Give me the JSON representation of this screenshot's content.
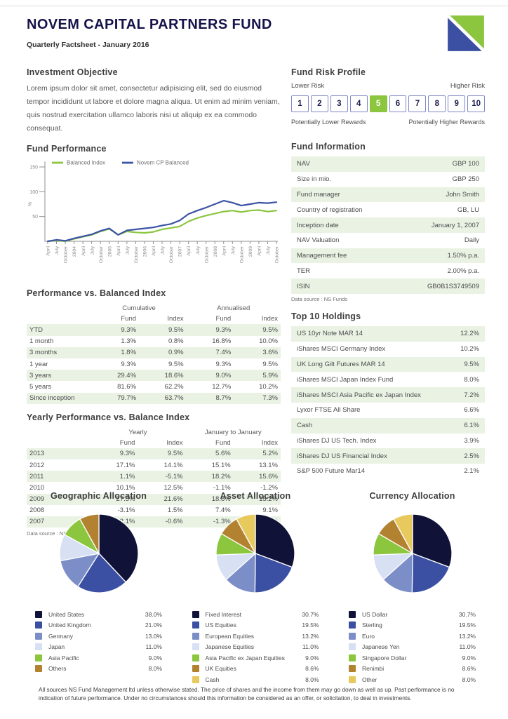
{
  "header": {
    "title": "NOVEM CAPITAL PARTNERS FUND",
    "subtitle": "Quarterly Factsheet - January 2016"
  },
  "colors": {
    "navy": "#101238",
    "blue": "#3b50a3",
    "steel": "#7c8ec7",
    "light_blue": "#d8e0f4",
    "green": "#8cc63f",
    "brown": "#b28231",
    "gold": "#e8c95e",
    "stripe_green": "#e9f2e3",
    "title_navy": "#17134a"
  },
  "objective": {
    "title": "Investment Objective",
    "text": "Lorem ipsum dolor sit amet, consectetur adipisicing elit, sed do eiusmod tempor incididunt ut labore et dolore magna aliqua. Ut enim ad minim veniam, quis nostrud exercitation ullamco laboris nisi ut aliquip ex ea commodo consequat."
  },
  "risk": {
    "title": "Fund Risk Profile",
    "lower": "Lower Risk",
    "higher": "Higher Risk",
    "boxes": [
      "1",
      "2",
      "3",
      "4",
      "5",
      "6",
      "7",
      "8",
      "9",
      "10"
    ],
    "selected_index": 4,
    "lower_rewards": "Potentially Lower Rewards",
    "higher_rewards": "Potentially Higher Rewards"
  },
  "chart_data": [
    {
      "type": "line",
      "title": "Fund Performance",
      "ylabel": "%",
      "ylim": [
        0,
        150
      ],
      "yticks": [
        50,
        100,
        150
      ],
      "legend_position": "top",
      "x": [
        "April",
        "July",
        "October",
        "2004",
        "April",
        "July",
        "October",
        "2005",
        "April",
        "July",
        "October",
        "2006",
        "April",
        "July",
        "October",
        "2007",
        "April",
        "July",
        "October",
        "2008",
        "April",
        "July",
        "October",
        "2009",
        "April",
        "July",
        "October"
      ],
      "series": [
        {
          "name": "Balanced Index",
          "color": "#8cc63f",
          "values": [
            0,
            2,
            0,
            5,
            9,
            13,
            20,
            25,
            13,
            20,
            18,
            17,
            19,
            24,
            27,
            30,
            40,
            47,
            52,
            56,
            60,
            62,
            59,
            62,
            63,
            60,
            62
          ]
        },
        {
          "name": "Novem CP Balanced",
          "color": "#3b53a5",
          "values": [
            0,
            3,
            1,
            6,
            10,
            14,
            21,
            26,
            13,
            22,
            24,
            26,
            28,
            32,
            35,
            42,
            55,
            62,
            68,
            75,
            82,
            78,
            72,
            75,
            78,
            77,
            79
          ]
        }
      ]
    },
    {
      "type": "pie",
      "title": "Geographic Allocation",
      "labels": [
        "United States",
        "United Kingdom",
        "Germany",
        "Japan",
        "Asia Pacific",
        "Others"
      ],
      "values": [
        38.0,
        21.0,
        13.0,
        11.0,
        9.0,
        8.0
      ],
      "value_labels": [
        "38.0%",
        "21.0%",
        "13.0%",
        "11.0%",
        "9.0%",
        "8.0%"
      ],
      "colors": [
        "#101238",
        "#3b50a3",
        "#7c8ec7",
        "#d8e0f4",
        "#8cc63f",
        "#b28231"
      ]
    },
    {
      "type": "pie",
      "title": "Asset Allocation",
      "labels": [
        "Fixed Interest",
        "US Equities",
        "European Equities",
        "Japanese Equities",
        "Asia Pacific ex Japan Equities",
        "UK Equities",
        "Cash"
      ],
      "values": [
        30.7,
        19.5,
        13.2,
        11.0,
        9.0,
        8.6,
        8.0
      ],
      "value_labels": [
        "30.7%",
        "19.5%",
        "13.2%",
        "11.0%",
        "9.0%",
        "8.6%",
        "8.0%"
      ],
      "colors": [
        "#101238",
        "#3b50a3",
        "#7c8ec7",
        "#d8e0f4",
        "#8cc63f",
        "#b28231",
        "#e8c95e"
      ]
    },
    {
      "type": "pie",
      "title": "Currency Allocation",
      "labels": [
        "US Dollar",
        "Sterling",
        "Euro",
        "Japanese Yen",
        "Singapore Dollar",
        "Renimbi",
        "Other"
      ],
      "values": [
        30.7,
        19.5,
        13.2,
        11.0,
        9.0,
        8.6,
        8.0
      ],
      "value_labels": [
        "30.7%",
        "19.5%",
        "13.2%",
        "11.0%",
        "9.0%",
        "8.6%",
        "8.0%"
      ],
      "colors": [
        "#101238",
        "#3b50a3",
        "#7c8ec7",
        "#d8e0f4",
        "#8cc63f",
        "#b28231",
        "#e8c95e"
      ]
    }
  ],
  "perf_table": {
    "title": "Performance vs. Balanced Index",
    "groups": [
      "Cumulative",
      "Annualised"
    ],
    "columns": [
      "Fund",
      "Index",
      "Fund",
      "Index"
    ],
    "rows": [
      {
        "label": "YTD",
        "values": [
          "9.3%",
          "9.5%",
          "9.3%",
          "9.5%"
        ]
      },
      {
        "label": "1 month",
        "values": [
          "1.3%",
          "0.8%",
          "16.8%",
          "10.0%"
        ]
      },
      {
        "label": "3 months",
        "values": [
          "1.8%",
          "0.9%",
          "7.4%",
          "3.6%"
        ]
      },
      {
        "label": "1 year",
        "values": [
          "9.3%",
          "9.5%",
          "9.3%",
          "9.5%"
        ]
      },
      {
        "label": "3 years",
        "values": [
          "29.4%",
          "18.6%",
          "9.0%",
          "5.9%"
        ]
      },
      {
        "label": "5 years",
        "values": [
          "81.6%",
          "62.2%",
          "12.7%",
          "10.2%"
        ]
      },
      {
        "label": "Since inception",
        "values": [
          "79.7%",
          "63.7%",
          "8.7%",
          "7.3%"
        ]
      }
    ]
  },
  "yearly_table": {
    "title": "Yearly Performance vs. Balance Index",
    "groups": [
      "Yearly",
      "January to January"
    ],
    "columns": [
      "Fund",
      "Index",
      "Fund",
      "Index"
    ],
    "rows": [
      {
        "label": "2013",
        "values": [
          "9.3%",
          "9.5%",
          "5.6%",
          "5.2%"
        ]
      },
      {
        "label": "2012",
        "values": [
          "17.1%",
          "14.1%",
          "15.1%",
          "13.1%"
        ]
      },
      {
        "label": "2011",
        "values": [
          "1.1%",
          "-5.1%",
          "18.2%",
          "15.6%"
        ]
      },
      {
        "label": "2010",
        "values": [
          "10.1%",
          "12.5%",
          "-1.1%",
          "-1.2%"
        ]
      },
      {
        "label": "2009",
        "values": [
          "27.5%",
          "21.6%",
          "18.8%",
          "15.2%"
        ]
      },
      {
        "label": "2008",
        "values": [
          "-3.1%",
          "1.5%",
          "7.4%",
          "9.1%"
        ]
      },
      {
        "label": "2007",
        "values": [
          "2.1%",
          "-0.6%",
          "-1.3%",
          "0.5%"
        ]
      }
    ],
    "source": "Data source : NS Funds"
  },
  "fund_info": {
    "title": "Fund Information",
    "rows": [
      [
        "NAV",
        "GBP 100"
      ],
      [
        "Size in mio.",
        "GBP 250"
      ],
      [
        "Fund manager",
        "John Smith"
      ],
      [
        "Country of registration",
        "GB, LU"
      ],
      [
        "Inception date",
        "January 1, 2007"
      ],
      [
        "NAV Valuation",
        "Daily"
      ],
      [
        "Management fee",
        "1.50% p.a."
      ],
      [
        "TER",
        "2.00% p.a."
      ],
      [
        "ISIN",
        "GB0B1S3749509"
      ]
    ],
    "source": "Data source : NS Funds"
  },
  "holdings": {
    "title": "Top 10 Holdings",
    "rows": [
      [
        "US 10yr Note MAR 14",
        "12.2%"
      ],
      [
        "iShares MSCI Germany Index",
        "10.2%"
      ],
      [
        "UK Long Gilt Futures MAR 14",
        "9.5%"
      ],
      [
        "iShares MSCI Japan Index Fund",
        "8.0%"
      ],
      [
        "iShares MSCI Asia Pacific ex Japan Index",
        "7.2%"
      ],
      [
        "Lyxor FTSE All Share",
        "6.6%"
      ],
      [
        "Cash",
        "6.1%"
      ],
      [
        "iShares DJ US Tech. Index",
        "3.9%"
      ],
      [
        "iShares DJ US Financial Index",
        "2.5%"
      ],
      [
        "S&P 500 Future Mar14",
        "2.1%"
      ]
    ]
  },
  "footer": {
    "text": "All sources NS Fund Management ltd unless otherwise stated. The price of shares and the income from them may go down as well as up. Past performance is no indication of future performance. Under no circumstances should this information be considered as an offer, or solicitation, to deal in investments."
  }
}
